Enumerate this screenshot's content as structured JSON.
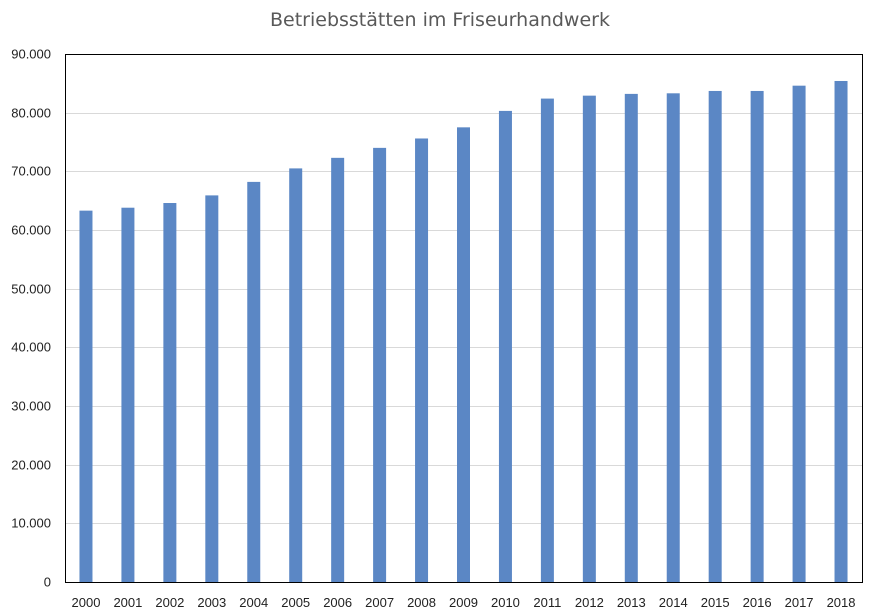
{
  "chart_data": {
    "type": "bar",
    "title": "Betriebsstätten im Friseurhandwerk",
    "xlabel": "",
    "ylabel": "",
    "categories": [
      "2000",
      "2001",
      "2002",
      "2003",
      "2004",
      "2005",
      "2006",
      "2007",
      "2008",
      "2009",
      "2010",
      "2011",
      "2012",
      "2013",
      "2014",
      "2015",
      "2016",
      "2017",
      "2018"
    ],
    "values": [
      63300,
      63800,
      64600,
      65900,
      68200,
      70500,
      72300,
      74000,
      75600,
      77500,
      80300,
      82400,
      82900,
      83200,
      83300,
      83700,
      83700,
      84600,
      85400
    ],
    "ylim": [
      0,
      90000
    ],
    "yticks": [
      0,
      10000,
      20000,
      30000,
      40000,
      50000,
      60000,
      70000,
      80000,
      90000
    ],
    "ytick_labels": [
      "0",
      "10.000",
      "20.000",
      "30.000",
      "40.000",
      "50.000",
      "60.000",
      "70.000",
      "80.000",
      "90.000"
    ],
    "grid": true,
    "legend": "none",
    "bar_color": "#5b87c5"
  }
}
